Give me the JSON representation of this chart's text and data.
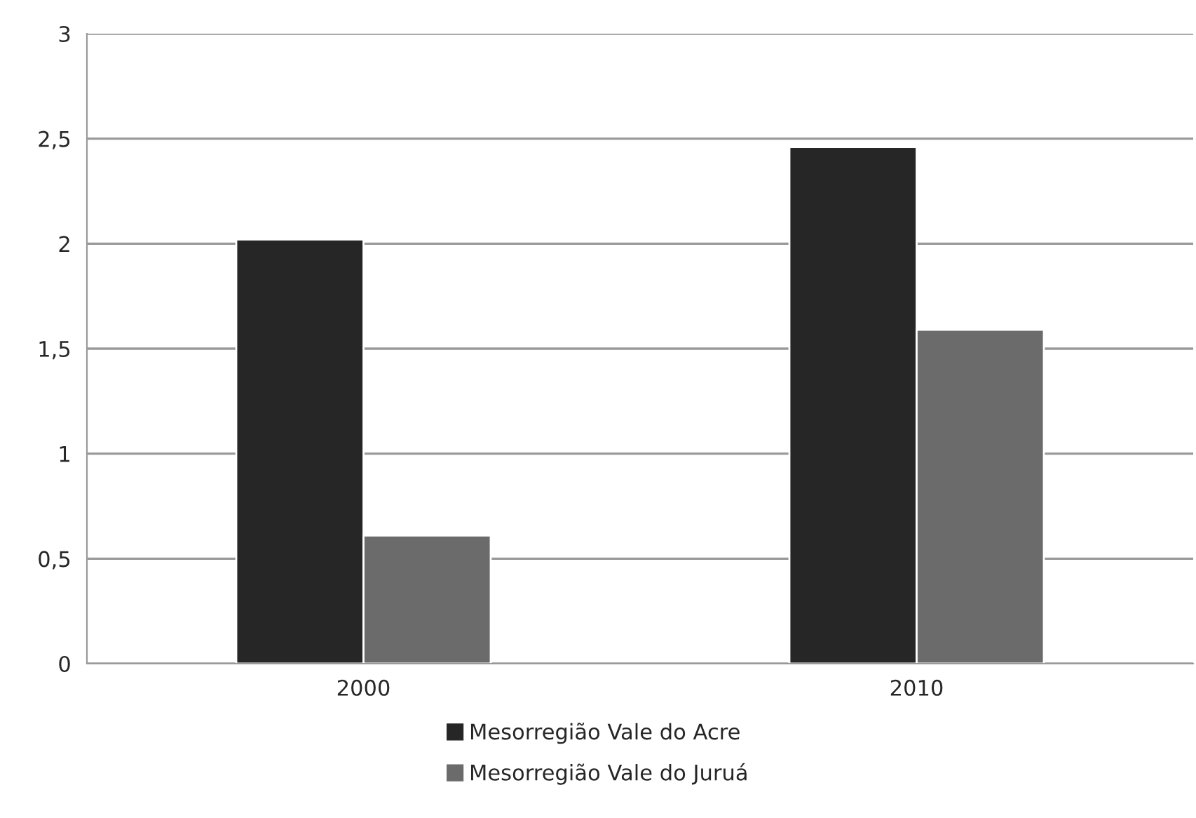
{
  "chart_data": {
    "type": "bar",
    "categories": [
      "2000",
      "2010"
    ],
    "series": [
      {
        "name": "Mesorregião Vale do Acre",
        "color": "#262626",
        "values": [
          2.02,
          2.46
        ]
      },
      {
        "name": "Mesorregião Vale do Juruá",
        "color": "#6b6b6b",
        "values": [
          0.61,
          1.59
        ]
      }
    ],
    "ylim": [
      0,
      3
    ],
    "yticks": [
      0,
      {
        "value": 0.5,
        "label": "0,5"
      },
      1,
      {
        "value": 1.5,
        "label": "1,5"
      },
      2,
      {
        "value": 2.5,
        "label": "2,5"
      },
      3
    ],
    "grid": "y",
    "legend": "bottom"
  }
}
